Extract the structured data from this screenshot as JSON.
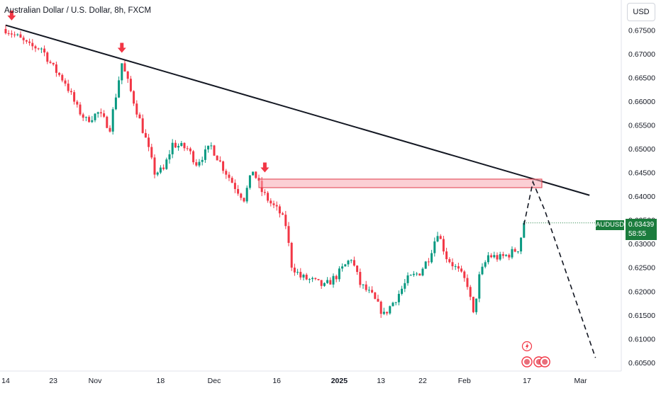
{
  "title": "Australian Dollar / U.S. Dollar, 8h, FXCM",
  "currency_button": "USD",
  "price_tag": {
    "symbol": "AUDUSD",
    "price": "0.63439",
    "countdown": "58:55"
  },
  "colors": {
    "up": "#089981",
    "down": "#f23645",
    "trendline": "#131722",
    "zone_fill": "#f7a8b0",
    "zone_border": "#e03a4a",
    "tag": "#1b7c3d"
  },
  "chart_data": {
    "type": "candlestick",
    "y_ticks": [
      "0.67500",
      "0.67000",
      "0.66500",
      "0.66000",
      "0.65500",
      "0.65000",
      "0.64500",
      "0.64000",
      "0.63500",
      "0.63000",
      "0.62500",
      "0.62000",
      "0.61500",
      "0.61000",
      "0.60500"
    ],
    "ylim": [
      0.6032,
      0.6813
    ],
    "x_ticks": [
      {
        "label": "14",
        "bar": 0
      },
      {
        "label": "23",
        "bar": 16
      },
      {
        "label": "Nov",
        "bar": 30
      },
      {
        "label": "18",
        "bar": 52
      },
      {
        "label": "Dec",
        "bar": 70
      },
      {
        "label": "16",
        "bar": 91
      },
      {
        "label": "2025",
        "bar": 112
      },
      {
        "label": "13",
        "bar": 126
      },
      {
        "label": "22",
        "bar": 140
      },
      {
        "label": "Feb",
        "bar": 154
      },
      {
        "label": "17",
        "bar": 175
      },
      {
        "label": "Mar",
        "bar": 193
      }
    ],
    "bars": 200,
    "current_price": 0.63439,
    "path_anchors": [
      [
        0,
        0.6752
      ],
      [
        4,
        0.6735
      ],
      [
        8,
        0.6715
      ],
      [
        12,
        0.6712
      ],
      [
        16,
        0.667
      ],
      [
        20,
        0.664
      ],
      [
        24,
        0.6585
      ],
      [
        27,
        0.656
      ],
      [
        31,
        0.6575
      ],
      [
        35,
        0.6545
      ],
      [
        39,
        0.668
      ],
      [
        41,
        0.664
      ],
      [
        44,
        0.658
      ],
      [
        47,
        0.652
      ],
      [
        50,
        0.645
      ],
      [
        53,
        0.6455
      ],
      [
        56,
        0.651
      ],
      [
        61,
        0.65
      ],
      [
        64,
        0.647
      ],
      [
        69,
        0.6505
      ],
      [
        73,
        0.646
      ],
      [
        77,
        0.642
      ],
      [
        80,
        0.6395
      ],
      [
        83,
        0.6455
      ],
      [
        86,
        0.641
      ],
      [
        89,
        0.6385
      ],
      [
        92,
        0.6365
      ],
      [
        94,
        0.634
      ],
      [
        96,
        0.6255
      ],
      [
        99,
        0.623
      ],
      [
        103,
        0.6222
      ],
      [
        107,
        0.621
      ],
      [
        111,
        0.6232
      ],
      [
        116,
        0.627
      ],
      [
        119,
        0.6215
      ],
      [
        123,
        0.619
      ],
      [
        127,
        0.615
      ],
      [
        131,
        0.6185
      ],
      [
        135,
        0.6225
      ],
      [
        139,
        0.624
      ],
      [
        142,
        0.627
      ],
      [
        145,
        0.6325
      ],
      [
        148,
        0.6272
      ],
      [
        152,
        0.6242
      ],
      [
        155,
        0.6215
      ],
      [
        157,
        0.615
      ],
      [
        159,
        0.623
      ],
      [
        162,
        0.6275
      ],
      [
        166,
        0.627
      ],
      [
        169,
        0.6278
      ],
      [
        172,
        0.629
      ],
      [
        174,
        0.634
      ]
    ],
    "trendline": [
      [
        0,
        0.676
      ],
      [
        196,
        0.6402
      ]
    ],
    "resistance_zone": {
      "x": [
        85,
        180
      ],
      "y": [
        0.6418,
        0.6436
      ]
    },
    "markers": [
      {
        "bar": 2,
        "price": 0.677
      },
      {
        "bar": 39,
        "price": 0.6702
      },
      {
        "bar": 87,
        "price": 0.645
      }
    ],
    "projection": [
      [
        174,
        0.634
      ],
      [
        177,
        0.643
      ],
      [
        181,
        0.637
      ],
      [
        198,
        0.606
      ]
    ],
    "event_icons": {
      "flash_bar": 175,
      "flag_bars": [
        175,
        179,
        181
      ]
    }
  }
}
